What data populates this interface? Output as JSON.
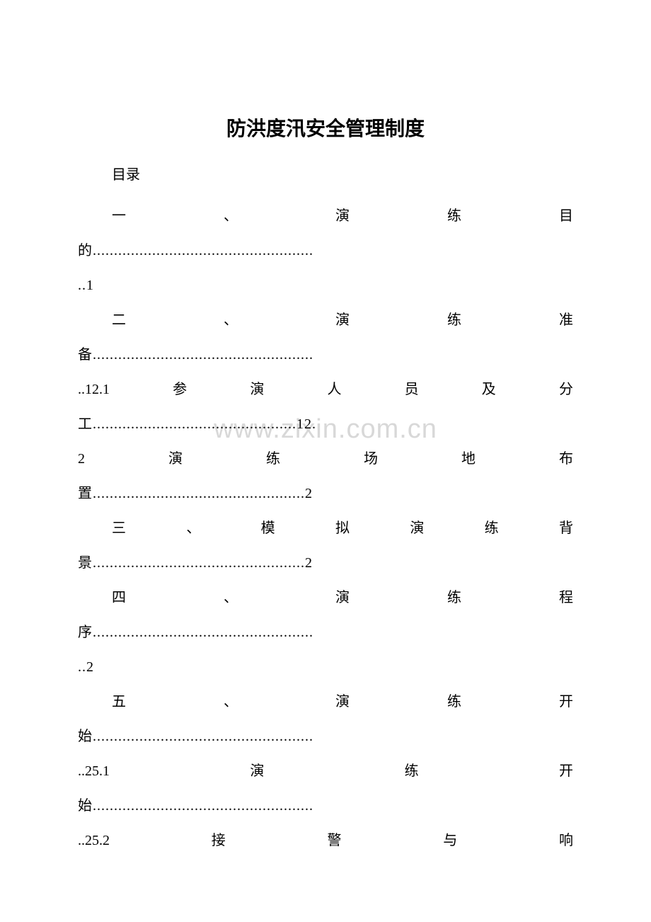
{
  "document": {
    "title": "防洪度汛安全管理制度",
    "toc_label": "目录",
    "watermark": "www.zixin.com.cn",
    "background_color": "#ffffff",
    "text_color": "#000000",
    "watermark_color": "#d8d8d8",
    "title_fontsize": 28,
    "body_fontsize": 20,
    "line_height": 2.45,
    "entries": [
      {
        "line1_chars": [
          "一",
          "、",
          "演",
          "练",
          "目"
        ],
        "line1_indent": true,
        "line2": "的....................................................",
        "line3": "..1"
      },
      {
        "line1_chars": [
          "二",
          "、",
          "演",
          "练",
          "准"
        ],
        "line1_indent": true,
        "line2": "备....................................................",
        "line3_chars": [
          "..12.1",
          "参",
          "演",
          "人",
          "员",
          "及",
          "分"
        ],
        "line4_text": "工................................................12.",
        "line5_chars": [
          "2",
          "演",
          "练",
          "场",
          "地",
          "布"
        ],
        "line6_text": "置..................................................2"
      },
      {
        "line1_chars": [
          "三",
          "、",
          "模",
          "拟",
          "演",
          "练",
          "背"
        ],
        "line1_indent": true,
        "line2": "景..................................................2"
      },
      {
        "line1_chars": [
          "四",
          "、",
          "演",
          "练",
          "程"
        ],
        "line1_indent": true,
        "line2": "序....................................................",
        "line3": "..2"
      },
      {
        "line1_chars": [
          "五",
          "、",
          "演",
          "练",
          "开"
        ],
        "line1_indent": true,
        "line2": "始....................................................",
        "line3_chars": [
          "..25.1",
          "演",
          "练",
          "开"
        ],
        "line4_text": "始....................................................",
        "line5_chars": [
          "..25.2",
          "接",
          "警",
          "与",
          "响"
        ]
      }
    ]
  }
}
